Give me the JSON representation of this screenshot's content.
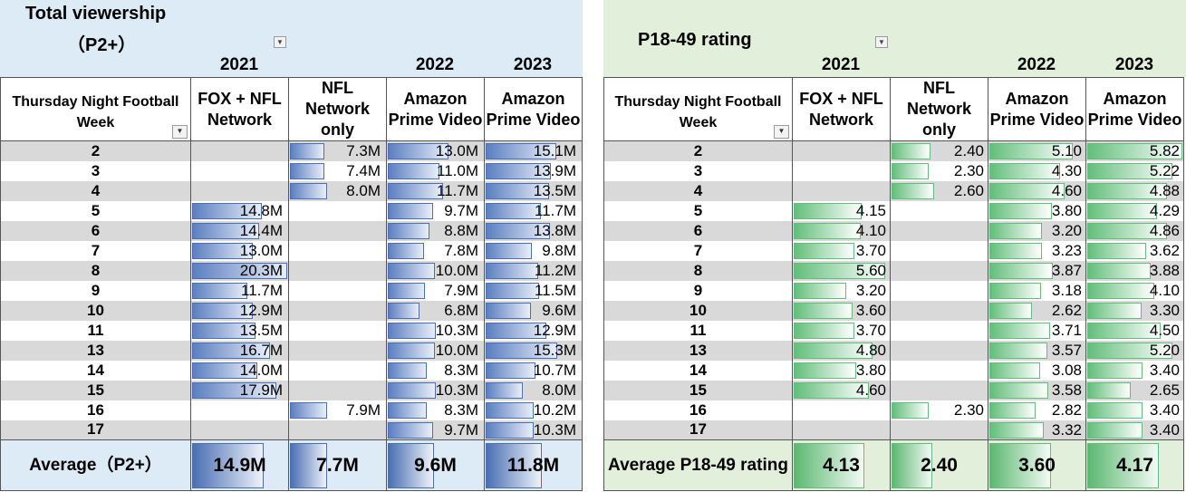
{
  "viewership": {
    "title_line1": "Total viewership",
    "title_line2": "（P2+）",
    "years": [
      "2021",
      "2022",
      "2023"
    ],
    "headers": [
      "Thursday Night Football Week",
      "FOX + NFL Network",
      "NFL Network only",
      "Amazon Prime Video",
      "Amazon Prime Video"
    ],
    "rows": [
      {
        "week": "2",
        "c": [
          "",
          "7.3M",
          "13.0M",
          "15.1M"
        ]
      },
      {
        "week": "3",
        "c": [
          "",
          "7.4M",
          "11.0M",
          "13.9M"
        ]
      },
      {
        "week": "4",
        "c": [
          "",
          "8.0M",
          "11.7M",
          "13.5M"
        ]
      },
      {
        "week": "5",
        "c": [
          "14.8M",
          "",
          "9.7M",
          "11.7M"
        ]
      },
      {
        "week": "6",
        "c": [
          "14.4M",
          "",
          "8.8M",
          "13.8M"
        ]
      },
      {
        "week": "7",
        "c": [
          "13.0M",
          "",
          "7.8M",
          "9.8M"
        ]
      },
      {
        "week": "8",
        "c": [
          "20.3M",
          "",
          "10.0M",
          "11.2M"
        ]
      },
      {
        "week": "9",
        "c": [
          "11.7M",
          "",
          "7.9M",
          "11.5M"
        ]
      },
      {
        "week": "10",
        "c": [
          "12.9M",
          "",
          "6.8M",
          "9.6M"
        ]
      },
      {
        "week": "11",
        "c": [
          "13.5M",
          "",
          "10.3M",
          "12.9M"
        ]
      },
      {
        "week": "13",
        "c": [
          "16.7M",
          "",
          "10.0M",
          "15.3M"
        ]
      },
      {
        "week": "14",
        "c": [
          "14.0M",
          "",
          "8.3M",
          "10.7M"
        ]
      },
      {
        "week": "15",
        "c": [
          "17.9M",
          "",
          "10.3M",
          "8.0M"
        ]
      },
      {
        "week": "16",
        "c": [
          "",
          "7.9M",
          "8.3M",
          "10.2M"
        ]
      },
      {
        "week": "17",
        "c": [
          "",
          "",
          "9.7M",
          "10.3M"
        ]
      }
    ],
    "average_label": "Average（P2+）",
    "averages": [
      "14.9M",
      "7.7M",
      "9.6M",
      "11.8M"
    ]
  },
  "rating": {
    "title": "P18-49 rating",
    "years": [
      "2021",
      "2022",
      "2023"
    ],
    "headers": [
      "Thursday Night Football Week",
      "FOX + NFL Network",
      "NFL Network only",
      "Amazon Prime Video",
      "Amazon Prime Video"
    ],
    "rows": [
      {
        "week": "2",
        "c": [
          "",
          "2.40",
          "5.10",
          "5.82"
        ]
      },
      {
        "week": "3",
        "c": [
          "",
          "2.30",
          "4.30",
          "5.22"
        ]
      },
      {
        "week": "4",
        "c": [
          "",
          "2.60",
          "4.60",
          "4.88"
        ]
      },
      {
        "week": "5",
        "c": [
          "4.15",
          "",
          "3.80",
          "4.29"
        ]
      },
      {
        "week": "6",
        "c": [
          "4.10",
          "",
          "3.20",
          "4.86"
        ]
      },
      {
        "week": "7",
        "c": [
          "3.70",
          "",
          "3.23",
          "3.62"
        ]
      },
      {
        "week": "8",
        "c": [
          "5.60",
          "",
          "3.87",
          "3.88"
        ]
      },
      {
        "week": "9",
        "c": [
          "3.20",
          "",
          "3.18",
          "4.10"
        ]
      },
      {
        "week": "10",
        "c": [
          "3.60",
          "",
          "2.62",
          "3.30"
        ]
      },
      {
        "week": "11",
        "c": [
          "3.70",
          "",
          "3.71",
          "4.50"
        ]
      },
      {
        "week": "13",
        "c": [
          "4.80",
          "",
          "3.57",
          "5.20"
        ]
      },
      {
        "week": "14",
        "c": [
          "3.80",
          "",
          "3.08",
          "3.40"
        ]
      },
      {
        "week": "15",
        "c": [
          "4.60",
          "",
          "3.58",
          "2.65"
        ]
      },
      {
        "week": "16",
        "c": [
          "",
          "2.30",
          "2.82",
          "3.40"
        ]
      },
      {
        "week": "17",
        "c": [
          "",
          "",
          "3.32",
          "3.40"
        ]
      }
    ],
    "average_label": "Average P18-49 rating",
    "averages": [
      "4.13",
      "2.40",
      "3.60",
      "4.17"
    ]
  },
  "icons": {
    "dropdown": "dropdown-arrow-icon",
    "filter": "filter-icon"
  },
  "colors": {
    "viewership_header_bg": "#ddebf7",
    "rating_header_bg": "#e2efda",
    "viewership_bar": "#5b7fc0",
    "rating_bar": "#63be7b",
    "stripe": "#d9d9d9"
  }
}
